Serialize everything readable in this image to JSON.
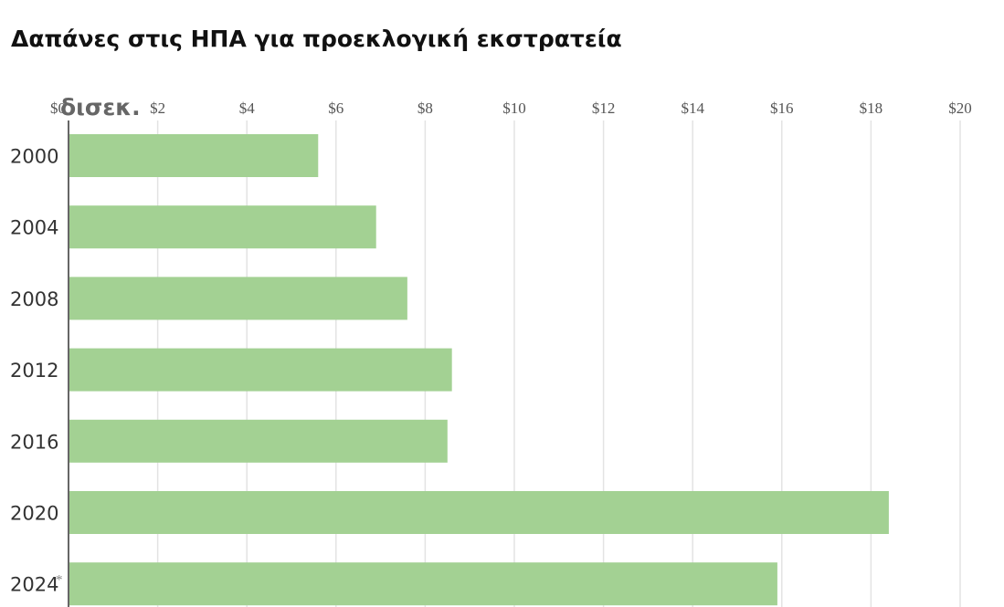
{
  "title": "Δαπάνες στις ΗΠΑ για προεκλογική εκστρατεία",
  "chart_data": {
    "type": "bar",
    "orientation": "horizontal",
    "title": "Δαπάνες στις ΗΠΑ για προεκλογική εκστρατεία",
    "unit_label": "δισεκ.",
    "categories": [
      "2000",
      "2004",
      "2008",
      "2012",
      "2016",
      "2020",
      "2024"
    ],
    "category_notes": [
      "",
      "",
      "",
      "",
      "",
      "",
      "*"
    ],
    "values": [
      5.6,
      6.9,
      7.6,
      8.6,
      8.5,
      18.4,
      15.9
    ],
    "xlim": [
      0,
      20
    ],
    "xticks": [
      0,
      2,
      4,
      6,
      8,
      10,
      12,
      14,
      16,
      18,
      20
    ],
    "xtick_labels": [
      "$0",
      "$2",
      "$4",
      "$6",
      "$8",
      "$10",
      "$12",
      "$14",
      "$16",
      "$18",
      "$20"
    ],
    "grid": true,
    "bar_color": "#a3d193",
    "grid_color": "#e3e3e3",
    "axis_color": "#333333"
  }
}
